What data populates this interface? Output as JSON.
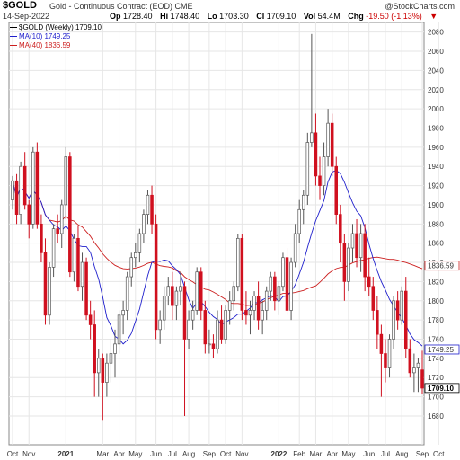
{
  "header": {
    "symbol": "$GOLD",
    "description": "Gold - Continuous Contract (EOD) CME",
    "copyright": "@StockCharts.com",
    "date": "14-Sep-2022",
    "open_label": "Op",
    "open": "1728.40",
    "high_label": "Hi",
    "high": "1748.40",
    "low_label": "Lo",
    "low": "1703.30",
    "close_label": "Cl",
    "close": "1709.10",
    "volume_label": "Vol",
    "volume": "54.4M",
    "change_label": "Chg",
    "change": "-19.50 (-1.13%)",
    "change_arrow": "▼"
  },
  "legend": {
    "symbol": "$GOLD (Weekly) 1709.10",
    "ma10": "MA(10) 1749.25",
    "ma40": "MA(40) 1836.59"
  },
  "colors": {
    "up": "#ffffff",
    "down": "#d0101f",
    "candle_outline": "#555555",
    "ma10": "#1f1fcc",
    "ma40": "#cc1f1f",
    "grid": "#e6e6e6",
    "last_price_box": "#000000"
  },
  "chart_data": {
    "type": "candlestick",
    "timeframe": "weekly",
    "ylim": [
      1650,
      2090
    ],
    "y_ticks": [
      1680,
      1700,
      1720,
      1740,
      1760,
      1780,
      1800,
      1820,
      1840,
      1860,
      1880,
      1900,
      1920,
      1940,
      1960,
      1980,
      2000,
      2020,
      2040,
      2060,
      2080
    ],
    "x_labels": [
      {
        "label": "Oct",
        "week": 0
      },
      {
        "label": "Nov",
        "week": 4
      },
      {
        "label": "2021",
        "week": 13,
        "bold": true
      },
      {
        "label": "Mar",
        "week": 22
      },
      {
        "label": "Apr",
        "week": 26
      },
      {
        "label": "May",
        "week": 30
      },
      {
        "label": "Jun",
        "week": 35
      },
      {
        "label": "Jul",
        "week": 39
      },
      {
        "label": "Aug",
        "week": 43
      },
      {
        "label": "Sep",
        "week": 48
      },
      {
        "label": "Oct",
        "week": 52
      },
      {
        "label": "Nov",
        "week": 56
      },
      {
        "label": "2022",
        "week": 65,
        "bold": true
      },
      {
        "label": "Feb",
        "week": 70
      },
      {
        "label": "Mar",
        "week": 74
      },
      {
        "label": "Apr",
        "week": 78
      },
      {
        "label": "May",
        "week": 82
      },
      {
        "label": "Jun",
        "week": 87
      },
      {
        "label": "Jul",
        "week": 91
      },
      {
        "label": "Aug",
        "week": 95
      },
      {
        "label": "Sep",
        "week": 100
      },
      {
        "label": "Oct",
        "week": 104
      }
    ],
    "last_price": 1709.1,
    "ma10_last": 1749.25,
    "ma40_last": 1836.59,
    "candles": [
      {
        "o": 1905,
        "h": 1930,
        "l": 1895,
        "c": 1925
      },
      {
        "o": 1925,
        "h": 1932,
        "l": 1880,
        "c": 1890
      },
      {
        "o": 1890,
        "h": 1945,
        "l": 1880,
        "c": 1940
      },
      {
        "o": 1940,
        "h": 1955,
        "l": 1895,
        "c": 1900
      },
      {
        "o": 1900,
        "h": 1905,
        "l": 1865,
        "c": 1880
      },
      {
        "o": 1880,
        "h": 1960,
        "l": 1875,
        "c": 1955
      },
      {
        "o": 1955,
        "h": 1965,
        "l": 1875,
        "c": 1880
      },
      {
        "o": 1880,
        "h": 1890,
        "l": 1840,
        "c": 1850
      },
      {
        "o": 1850,
        "h": 1865,
        "l": 1775,
        "c": 1785
      },
      {
        "o": 1785,
        "h": 1840,
        "l": 1775,
        "c": 1835
      },
      {
        "o": 1835,
        "h": 1880,
        "l": 1825,
        "c": 1875
      },
      {
        "o": 1875,
        "h": 1890,
        "l": 1860,
        "c": 1870
      },
      {
        "o": 1870,
        "h": 1905,
        "l": 1855,
        "c": 1900
      },
      {
        "o": 1900,
        "h": 1960,
        "l": 1885,
        "c": 1950
      },
      {
        "o": 1950,
        "h": 1955,
        "l": 1825,
        "c": 1830
      },
      {
        "o": 1830,
        "h": 1870,
        "l": 1820,
        "c": 1865
      },
      {
        "o": 1865,
        "h": 1878,
        "l": 1810,
        "c": 1815
      },
      {
        "o": 1815,
        "h": 1850,
        "l": 1800,
        "c": 1840
      },
      {
        "o": 1840,
        "h": 1845,
        "l": 1780,
        "c": 1785
      },
      {
        "o": 1785,
        "h": 1800,
        "l": 1760,
        "c": 1775
      },
      {
        "o": 1775,
        "h": 1790,
        "l": 1700,
        "c": 1725
      },
      {
        "o": 1725,
        "h": 1750,
        "l": 1700,
        "c": 1740
      },
      {
        "o": 1740,
        "h": 1745,
        "l": 1675,
        "c": 1715
      },
      {
        "o": 1715,
        "h": 1745,
        "l": 1700,
        "c": 1735
      },
      {
        "o": 1735,
        "h": 1760,
        "l": 1715,
        "c": 1745
      },
      {
        "o": 1745,
        "h": 1770,
        "l": 1720,
        "c": 1755
      },
      {
        "o": 1755,
        "h": 1790,
        "l": 1745,
        "c": 1785
      },
      {
        "o": 1785,
        "h": 1800,
        "l": 1765,
        "c": 1790
      },
      {
        "o": 1790,
        "h": 1830,
        "l": 1780,
        "c": 1825
      },
      {
        "o": 1825,
        "h": 1850,
        "l": 1815,
        "c": 1845
      },
      {
        "o": 1845,
        "h": 1860,
        "l": 1835,
        "c": 1850
      },
      {
        "o": 1850,
        "h": 1875,
        "l": 1840,
        "c": 1870
      },
      {
        "o": 1870,
        "h": 1895,
        "l": 1860,
        "c": 1890
      },
      {
        "o": 1890,
        "h": 1915,
        "l": 1880,
        "c": 1910
      },
      {
        "o": 1910,
        "h": 1920,
        "l": 1870,
        "c": 1880
      },
      {
        "o": 1880,
        "h": 1890,
        "l": 1760,
        "c": 1770
      },
      {
        "o": 1770,
        "h": 1790,
        "l": 1755,
        "c": 1780
      },
      {
        "o": 1780,
        "h": 1815,
        "l": 1770,
        "c": 1805
      },
      {
        "o": 1805,
        "h": 1825,
        "l": 1795,
        "c": 1815
      },
      {
        "o": 1815,
        "h": 1830,
        "l": 1780,
        "c": 1795
      },
      {
        "o": 1795,
        "h": 1815,
        "l": 1780,
        "c": 1810
      },
      {
        "o": 1810,
        "h": 1830,
        "l": 1795,
        "c": 1815
      },
      {
        "o": 1815,
        "h": 1820,
        "l": 1680,
        "c": 1760
      },
      {
        "o": 1760,
        "h": 1790,
        "l": 1750,
        "c": 1780
      },
      {
        "o": 1780,
        "h": 1800,
        "l": 1770,
        "c": 1790
      },
      {
        "o": 1790,
        "h": 1835,
        "l": 1785,
        "c": 1830
      },
      {
        "o": 1830,
        "h": 1835,
        "l": 1780,
        "c": 1790
      },
      {
        "o": 1790,
        "h": 1800,
        "l": 1745,
        "c": 1755
      },
      {
        "o": 1755,
        "h": 1770,
        "l": 1745,
        "c": 1755
      },
      {
        "o": 1755,
        "h": 1765,
        "l": 1740,
        "c": 1750
      },
      {
        "o": 1750,
        "h": 1790,
        "l": 1745,
        "c": 1780
      },
      {
        "o": 1780,
        "h": 1795,
        "l": 1755,
        "c": 1760
      },
      {
        "o": 1760,
        "h": 1795,
        "l": 1755,
        "c": 1790
      },
      {
        "o": 1790,
        "h": 1810,
        "l": 1775,
        "c": 1800
      },
      {
        "o": 1800,
        "h": 1820,
        "l": 1790,
        "c": 1815
      },
      {
        "o": 1815,
        "h": 1870,
        "l": 1810,
        "c": 1865
      },
      {
        "o": 1865,
        "h": 1870,
        "l": 1780,
        "c": 1790
      },
      {
        "o": 1790,
        "h": 1810,
        "l": 1775,
        "c": 1785
      },
      {
        "o": 1785,
        "h": 1800,
        "l": 1765,
        "c": 1790
      },
      {
        "o": 1790,
        "h": 1810,
        "l": 1780,
        "c": 1805
      },
      {
        "o": 1805,
        "h": 1820,
        "l": 1770,
        "c": 1780
      },
      {
        "o": 1780,
        "h": 1800,
        "l": 1765,
        "c": 1790
      },
      {
        "o": 1790,
        "h": 1815,
        "l": 1780,
        "c": 1810
      },
      {
        "o": 1810,
        "h": 1830,
        "l": 1800,
        "c": 1825
      },
      {
        "o": 1825,
        "h": 1830,
        "l": 1790,
        "c": 1800
      },
      {
        "o": 1800,
        "h": 1820,
        "l": 1785,
        "c": 1815
      },
      {
        "o": 1815,
        "h": 1850,
        "l": 1810,
        "c": 1845
      },
      {
        "o": 1845,
        "h": 1855,
        "l": 1785,
        "c": 1790
      },
      {
        "o": 1790,
        "h": 1845,
        "l": 1780,
        "c": 1840
      },
      {
        "o": 1840,
        "h": 1880,
        "l": 1835,
        "c": 1870
      },
      {
        "o": 1870,
        "h": 1905,
        "l": 1860,
        "c": 1895
      },
      {
        "o": 1895,
        "h": 1915,
        "l": 1880,
        "c": 1910
      },
      {
        "o": 1910,
        "h": 1975,
        "l": 1900,
        "c": 1965
      },
      {
        "o": 1965,
        "h": 2078,
        "l": 1960,
        "c": 1975
      },
      {
        "o": 1975,
        "h": 1995,
        "l": 1920,
        "c": 1930
      },
      {
        "o": 1930,
        "h": 1950,
        "l": 1905,
        "c": 1920
      },
      {
        "o": 1920,
        "h": 1965,
        "l": 1910,
        "c": 1950
      },
      {
        "o": 1950,
        "h": 2000,
        "l": 1940,
        "c": 1985
      },
      {
        "o": 1985,
        "h": 1995,
        "l": 1930,
        "c": 1940
      },
      {
        "o": 1940,
        "h": 1950,
        "l": 1880,
        "c": 1890
      },
      {
        "o": 1890,
        "h": 1900,
        "l": 1840,
        "c": 1860
      },
      {
        "o": 1860,
        "h": 1870,
        "l": 1800,
        "c": 1820
      },
      {
        "o": 1820,
        "h": 1860,
        "l": 1810,
        "c": 1855
      },
      {
        "o": 1855,
        "h": 1880,
        "l": 1840,
        "c": 1870
      },
      {
        "o": 1870,
        "h": 1885,
        "l": 1835,
        "c": 1845
      },
      {
        "o": 1845,
        "h": 1880,
        "l": 1830,
        "c": 1870
      },
      {
        "o": 1870,
        "h": 1880,
        "l": 1810,
        "c": 1825
      },
      {
        "o": 1825,
        "h": 1845,
        "l": 1805,
        "c": 1815
      },
      {
        "o": 1815,
        "h": 1825,
        "l": 1780,
        "c": 1790
      },
      {
        "o": 1790,
        "h": 1805,
        "l": 1750,
        "c": 1765
      },
      {
        "o": 1765,
        "h": 1775,
        "l": 1700,
        "c": 1745
      },
      {
        "o": 1745,
        "h": 1760,
        "l": 1715,
        "c": 1730
      },
      {
        "o": 1730,
        "h": 1765,
        "l": 1720,
        "c": 1760
      },
      {
        "o": 1760,
        "h": 1805,
        "l": 1750,
        "c": 1800
      },
      {
        "o": 1800,
        "h": 1810,
        "l": 1770,
        "c": 1780
      },
      {
        "o": 1780,
        "h": 1815,
        "l": 1775,
        "c": 1810
      },
      {
        "o": 1810,
        "h": 1825,
        "l": 1740,
        "c": 1750
      },
      {
        "o": 1750,
        "h": 1760,
        "l": 1720,
        "c": 1725
      },
      {
        "o": 1725,
        "h": 1745,
        "l": 1705,
        "c": 1730
      },
      {
        "o": 1730,
        "h": 1740,
        "l": 1705,
        "c": 1735
      },
      {
        "o": 1728,
        "h": 1748,
        "l": 1703,
        "c": 1709
      }
    ]
  }
}
